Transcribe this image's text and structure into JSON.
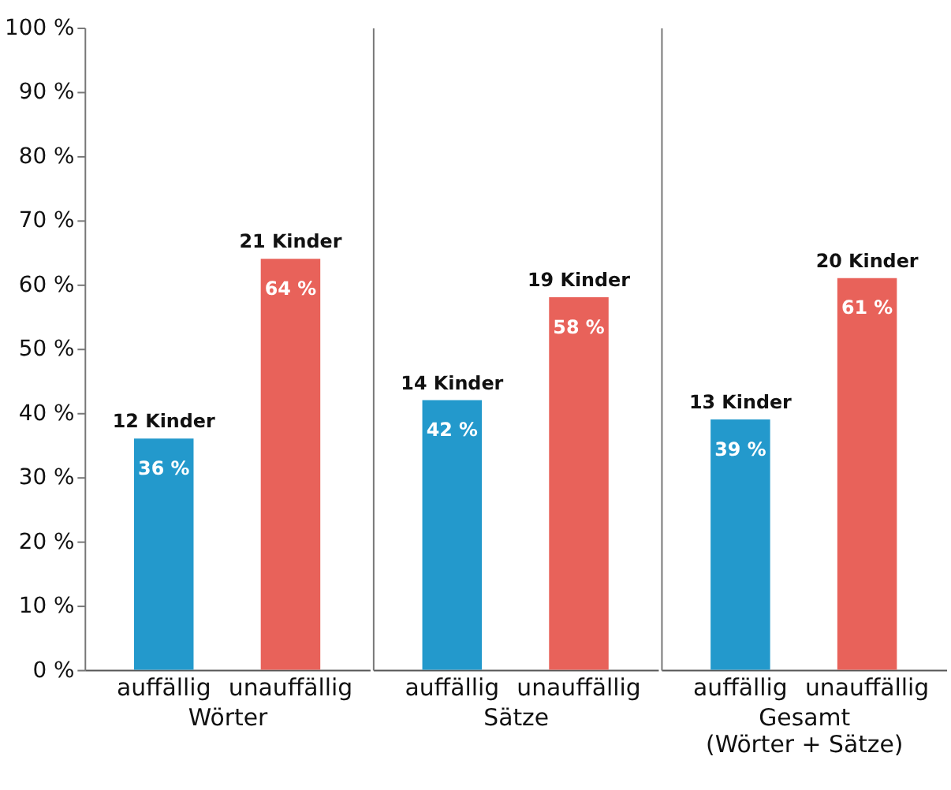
{
  "chart_data": [
    {
      "type": "bar",
      "categories": [
        "auffällig",
        "unauffällig"
      ],
      "xlabel": "Wörter",
      "values": [
        36,
        64
      ],
      "colors": [
        "#2399cc",
        "#e8625a"
      ],
      "value_labels": [
        "36 %",
        "64 %"
      ],
      "annotations": [
        {
          "text": "12 Kinder",
          "x": "auffällig",
          "y": 36
        },
        {
          "text": "21 Kinder",
          "x": "unauffällig",
          "y": 64
        }
      ],
      "ylim": [
        0,
        100
      ],
      "yticks": [
        {
          "value": 0,
          "label": "0 %"
        },
        {
          "value": 10,
          "label": "10 %"
        },
        {
          "value": 20,
          "label": "20 %"
        },
        {
          "value": 30,
          "label": "30 %"
        },
        {
          "value": 40,
          "label": "40 %"
        },
        {
          "value": 50,
          "label": "50 %"
        },
        {
          "value": 60,
          "label": "60 %"
        },
        {
          "value": 70,
          "label": "70 %"
        },
        {
          "value": 80,
          "label": "80 %"
        },
        {
          "value": 90,
          "label": "90 %"
        },
        {
          "value": 100,
          "label": "100 %"
        }
      ],
      "grid": false
    },
    {
      "type": "bar",
      "categories": [
        "auffällig",
        "unauffällig"
      ],
      "xlabel": "Sätze",
      "values": [
        42,
        58
      ],
      "colors": [
        "#2399cc",
        "#e8625a"
      ],
      "value_labels": [
        "42 %",
        "58 %"
      ],
      "annotations": [
        {
          "text": "14 Kinder",
          "x": "auffällig",
          "y": 42
        },
        {
          "text": "19 Kinder",
          "x": "unauffällig",
          "y": 58
        }
      ],
      "ylim": [
        0,
        100
      ],
      "tick_labels": "x",
      "grid": false
    },
    {
      "type": "bar",
      "categories": [
        "auffällig",
        "unauffällig"
      ],
      "xlabel": "Gesamt\n(Wörter + Sätze)",
      "values": [
        39,
        61
      ],
      "colors": [
        "#2399cc",
        "#e8625a"
      ],
      "value_labels": [
        "39 %",
        "61 %"
      ],
      "annotations": [
        {
          "text": "13 Kinder",
          "x": "auffällig",
          "y": 39
        },
        {
          "text": "20 Kinder",
          "x": "unauffällig",
          "y": 61
        }
      ],
      "ylim": [
        0,
        100
      ],
      "tick_labels": "x",
      "grid": false
    }
  ]
}
